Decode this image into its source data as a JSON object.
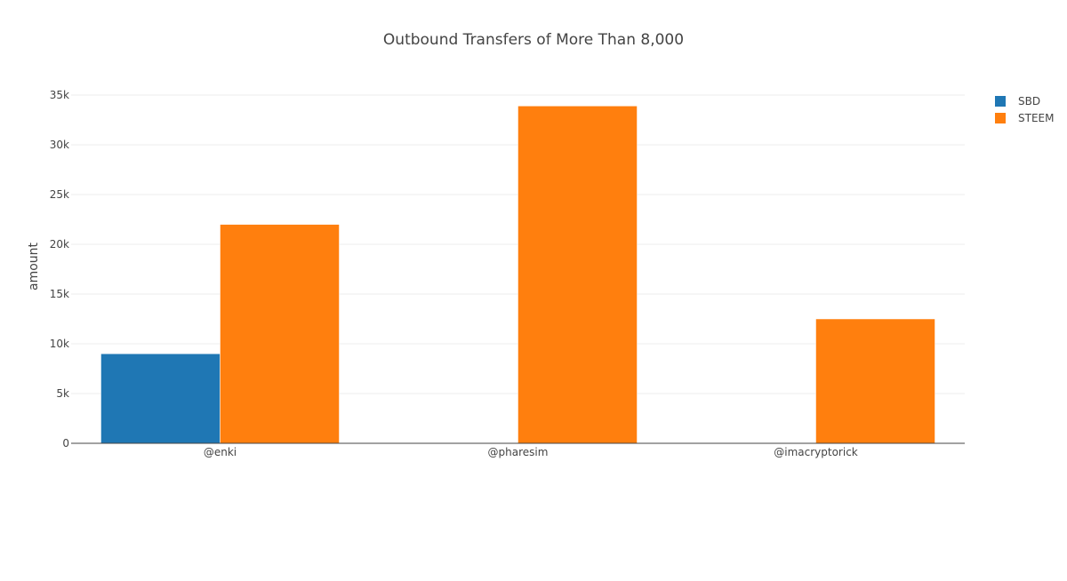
{
  "chart_data": {
    "type": "bar",
    "title": "Outbound Transfers of More Than 8,000",
    "xlabel": "",
    "ylabel": "amount",
    "categories": [
      "@enki",
      "@pharesim",
      "@imacryptorick"
    ],
    "series": [
      {
        "name": "SBD",
        "values": [
          9000,
          0,
          0
        ],
        "color": "#1f77b4"
      },
      {
        "name": "STEEM",
        "values": [
          22000,
          33900,
          12500
        ],
        "color": "#ff7f0e"
      }
    ],
    "ylim": [
      0,
      35000
    ],
    "yticks": [
      0,
      5000,
      10000,
      15000,
      20000,
      25000,
      30000,
      35000
    ],
    "ytick_labels": [
      "0",
      "5k",
      "10k",
      "15k",
      "20k",
      "25k",
      "30k",
      "35k"
    ],
    "grid": true,
    "legend_position": "top-right"
  }
}
